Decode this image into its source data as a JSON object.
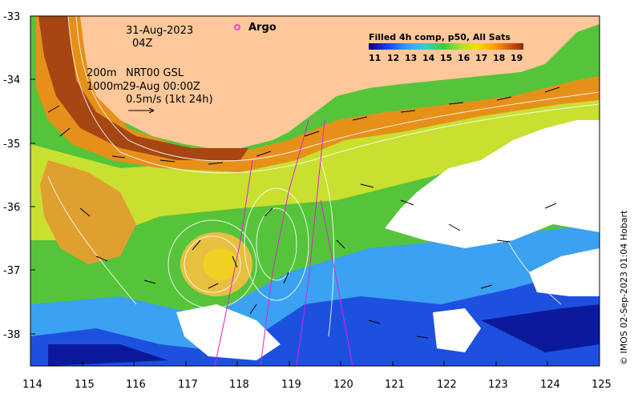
{
  "map": {
    "date": "31-Aug-2023",
    "time": "04Z",
    "depth_200": "200m",
    "depth_1000": "1000m",
    "product": "NRT00 GSL",
    "product_time": "29-Aug 00:00Z",
    "scale_text": "0.5m/s (1kt 24h)",
    "argo_label": "Argo",
    "credit": "© IMOS 02-Sep-2023 01:04 Hobart",
    "x_ticks": [
      "114",
      "115",
      "116",
      "117",
      "118",
      "119",
      "120",
      "121",
      "122",
      "123",
      "124",
      "125"
    ],
    "y_ticks": [
      "-33",
      "-34",
      "-35",
      "-36",
      "-37",
      "-38"
    ],
    "colorbar": {
      "title": "Filled 4h comp, p50, All Sats",
      "ticks": [
        "11",
        "12",
        "13",
        "14",
        "15",
        "16",
        "17",
        "18",
        "19"
      ],
      "colors": [
        "#06007a",
        "#1e3cff",
        "#3f9aff",
        "#36d0c0",
        "#3fc83f",
        "#b0e030",
        "#f0e000",
        "#ff9800",
        "#d05010",
        "#8a2a0a"
      ]
    },
    "land_color": "#fec89a",
    "argo_color": "#e020e0"
  }
}
